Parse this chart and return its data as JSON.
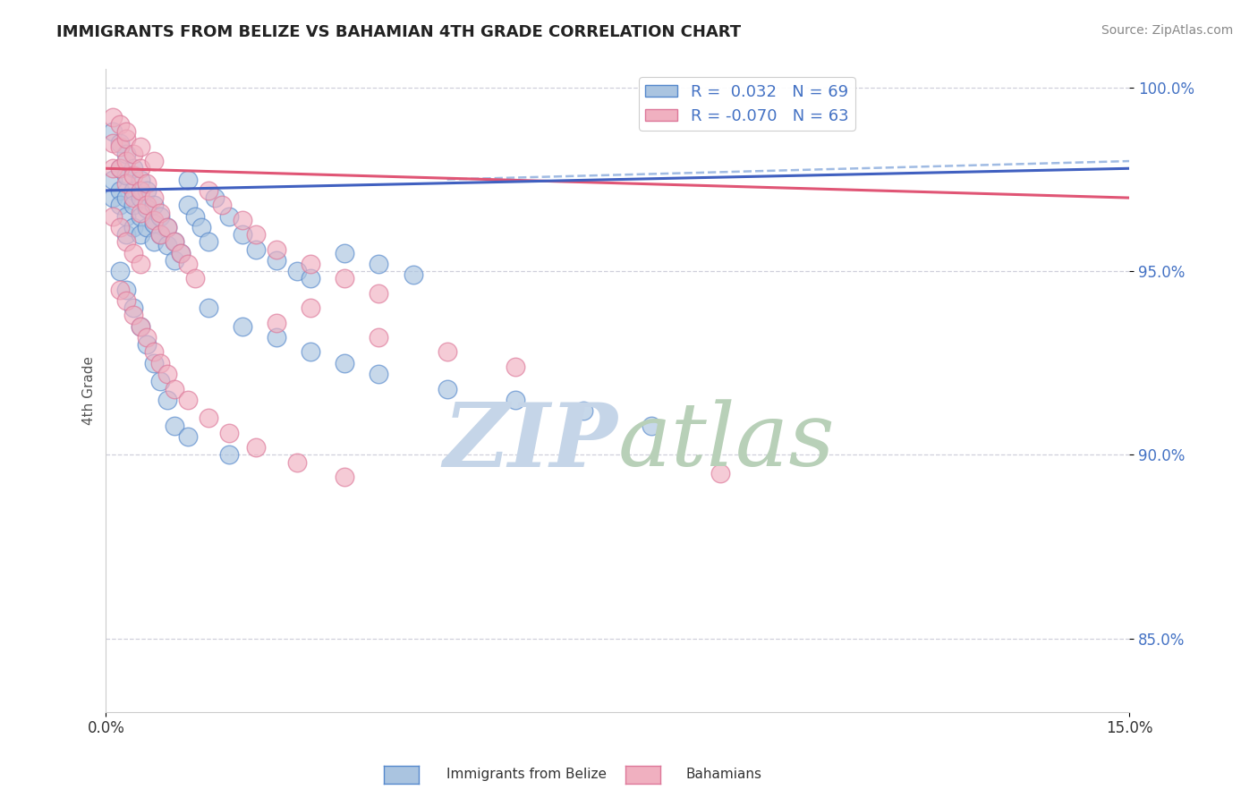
{
  "title": "IMMIGRANTS FROM BELIZE VS BAHAMIAN 4TH GRADE CORRELATION CHART",
  "source_text": "Source: ZipAtlas.com",
  "ylabel": "4th Grade",
  "xlim": [
    0.0,
    0.15
  ],
  "ylim": [
    0.83,
    1.005
  ],
  "blue_R": 0.032,
  "blue_N": 69,
  "pink_R": -0.07,
  "pink_N": 63,
  "legend_label_blue": "Immigrants from Belize",
  "legend_label_pink": "Bahamians",
  "blue_color": "#aac4e0",
  "blue_edge_color": "#5588cc",
  "pink_color": "#f0b0c0",
  "pink_edge_color": "#dd7799",
  "blue_line_color": "#4060c0",
  "pink_line_color": "#e05575",
  "dashed_line_color": "#88aadd",
  "ytick_color": "#4472c4",
  "watermark_zip_color": "#c5d5e8",
  "watermark_atlas_color": "#b8d0b8",
  "blue_scatter_x": [
    0.001,
    0.001,
    0.001,
    0.002,
    0.002,
    0.002,
    0.002,
    0.003,
    0.003,
    0.003,
    0.003,
    0.003,
    0.004,
    0.004,
    0.004,
    0.004,
    0.005,
    0.005,
    0.005,
    0.005,
    0.006,
    0.006,
    0.006,
    0.007,
    0.007,
    0.007,
    0.008,
    0.008,
    0.009,
    0.009,
    0.01,
    0.01,
    0.011,
    0.012,
    0.012,
    0.013,
    0.014,
    0.015,
    0.016,
    0.018,
    0.02,
    0.022,
    0.025,
    0.028,
    0.03,
    0.035,
    0.04,
    0.045,
    0.002,
    0.003,
    0.004,
    0.005,
    0.006,
    0.007,
    0.008,
    0.009,
    0.015,
    0.02,
    0.025,
    0.03,
    0.035,
    0.04,
    0.05,
    0.06,
    0.07,
    0.08,
    0.01,
    0.012,
    0.018
  ],
  "blue_scatter_y": [
    0.988,
    0.975,
    0.97,
    0.985,
    0.978,
    0.972,
    0.968,
    0.982,
    0.976,
    0.97,
    0.965,
    0.96,
    0.978,
    0.972,
    0.968,
    0.962,
    0.975,
    0.97,
    0.965,
    0.96,
    0.972,
    0.967,
    0.962,
    0.968,
    0.963,
    0.958,
    0.965,
    0.96,
    0.962,
    0.957,
    0.958,
    0.953,
    0.955,
    0.975,
    0.968,
    0.965,
    0.962,
    0.958,
    0.97,
    0.965,
    0.96,
    0.956,
    0.953,
    0.95,
    0.948,
    0.955,
    0.952,
    0.949,
    0.95,
    0.945,
    0.94,
    0.935,
    0.93,
    0.925,
    0.92,
    0.915,
    0.94,
    0.935,
    0.932,
    0.928,
    0.925,
    0.922,
    0.918,
    0.915,
    0.912,
    0.908,
    0.908,
    0.905,
    0.9
  ],
  "pink_scatter_x": [
    0.001,
    0.001,
    0.001,
    0.002,
    0.002,
    0.002,
    0.003,
    0.003,
    0.003,
    0.004,
    0.004,
    0.004,
    0.005,
    0.005,
    0.005,
    0.006,
    0.006,
    0.007,
    0.007,
    0.008,
    0.008,
    0.009,
    0.01,
    0.011,
    0.012,
    0.013,
    0.015,
    0.017,
    0.02,
    0.022,
    0.025,
    0.03,
    0.035,
    0.04,
    0.002,
    0.003,
    0.004,
    0.005,
    0.006,
    0.007,
    0.008,
    0.009,
    0.01,
    0.012,
    0.015,
    0.018,
    0.022,
    0.028,
    0.035,
    0.001,
    0.002,
    0.003,
    0.004,
    0.005,
    0.03,
    0.025,
    0.04,
    0.09,
    0.05,
    0.06,
    0.003,
    0.005,
    0.007
  ],
  "pink_scatter_y": [
    0.992,
    0.985,
    0.978,
    0.99,
    0.984,
    0.978,
    0.986,
    0.98,
    0.974,
    0.982,
    0.976,
    0.97,
    0.978,
    0.972,
    0.966,
    0.974,
    0.968,
    0.97,
    0.964,
    0.966,
    0.96,
    0.962,
    0.958,
    0.955,
    0.952,
    0.948,
    0.972,
    0.968,
    0.964,
    0.96,
    0.956,
    0.952,
    0.948,
    0.944,
    0.945,
    0.942,
    0.938,
    0.935,
    0.932,
    0.928,
    0.925,
    0.922,
    0.918,
    0.915,
    0.91,
    0.906,
    0.902,
    0.898,
    0.894,
    0.965,
    0.962,
    0.958,
    0.955,
    0.952,
    0.94,
    0.936,
    0.932,
    0.895,
    0.928,
    0.924,
    0.988,
    0.984,
    0.98
  ],
  "blue_line_x0": 0.0,
  "blue_line_y0": 0.972,
  "blue_line_x1": 0.15,
  "blue_line_y1": 0.978,
  "pink_line_x0": 0.0,
  "pink_line_y0": 0.978,
  "pink_line_x1": 0.15,
  "pink_line_y1": 0.97,
  "dashed_line_x0": 0.05,
  "dashed_line_y0": 0.975,
  "dashed_line_x1": 0.15,
  "dashed_line_y1": 0.98
}
